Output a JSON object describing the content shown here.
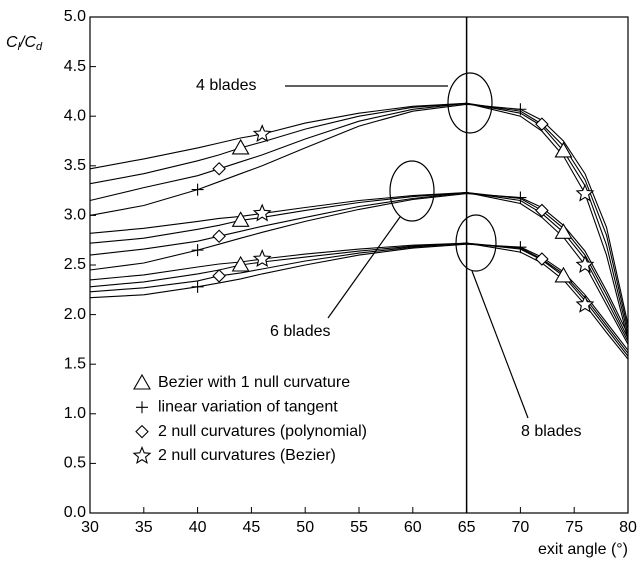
{
  "chart_data": {
    "type": "line",
    "ylabel": [
      "C",
      "l",
      "/C",
      "d"
    ],
    "xlabel": "exit angle (°)",
    "xlim": [
      30,
      80
    ],
    "ylim": [
      0,
      5
    ],
    "xticks": [
      30,
      35,
      40,
      45,
      50,
      55,
      60,
      65,
      70,
      75,
      80
    ],
    "yticks": [
      {
        "value": 0,
        "label": "0.0"
      },
      {
        "value": 0.5,
        "label": "0.5"
      },
      {
        "value": 1,
        "label": "1.0"
      },
      {
        "value": 1.5,
        "label": "1.5"
      },
      {
        "value": 2,
        "label": "2.0"
      },
      {
        "value": 2.5,
        "label": "2.5"
      },
      {
        "value": 3,
        "label": "3.0"
      },
      {
        "value": 3.5,
        "label": "3.5"
      },
      {
        "value": 4,
        "label": "4.0"
      },
      {
        "value": 4.5,
        "label": "4.5"
      },
      {
        "value": 5,
        "label": "5.0"
      }
    ],
    "vline": 65,
    "color": "#000000",
    "annotations": [
      "4 blades",
      "6 blades",
      "8 blades"
    ],
    "x": [
      30,
      35,
      40,
      42,
      44,
      46,
      50,
      55,
      60,
      65,
      70,
      72,
      74,
      76,
      78,
      80
    ],
    "series": [
      {
        "name": "Bezier with 1 null curvature",
        "marker": "triangle",
        "marker_x": [
          44,
          74
        ],
        "curves": [
          [
            3.32,
            3.42,
            3.55,
            3.61,
            3.68,
            3.74,
            3.87,
            4.0,
            4.09,
            4.13,
            4.03,
            3.9,
            3.65,
            3.3,
            2.7,
            1.8
          ],
          [
            2.72,
            2.77,
            2.86,
            2.9,
            2.95,
            2.98,
            3.05,
            3.13,
            3.19,
            3.23,
            3.15,
            3.02,
            2.83,
            2.56,
            2.15,
            1.73
          ],
          [
            2.28,
            2.33,
            2.41,
            2.45,
            2.5,
            2.53,
            2.58,
            2.64,
            2.69,
            2.72,
            2.66,
            2.55,
            2.39,
            2.14,
            1.86,
            1.58
          ]
        ]
      },
      {
        "name": "linear variation of tangent",
        "marker": "plus",
        "marker_x": [
          40,
          70
        ],
        "curves": [
          [
            3.0,
            3.1,
            3.26,
            3.34,
            3.42,
            3.5,
            3.68,
            3.9,
            4.05,
            4.12,
            4.07,
            3.96,
            3.75,
            3.42,
            2.88,
            1.9
          ],
          [
            2.45,
            2.52,
            2.65,
            2.71,
            2.77,
            2.83,
            2.94,
            3.06,
            3.16,
            3.22,
            3.18,
            3.08,
            2.9,
            2.64,
            2.24,
            1.8
          ],
          [
            2.17,
            2.2,
            2.28,
            2.32,
            2.36,
            2.41,
            2.5,
            2.6,
            2.67,
            2.71,
            2.68,
            2.58,
            2.43,
            2.2,
            1.92,
            1.64
          ]
        ]
      },
      {
        "name": "2 null curvatures (polynomial)",
        "marker": "diamond",
        "marker_x": [
          42,
          72
        ],
        "curves": [
          [
            3.15,
            3.28,
            3.4,
            3.47,
            3.54,
            3.61,
            3.77,
            3.95,
            4.07,
            4.13,
            4.05,
            3.92,
            3.7,
            3.36,
            2.8,
            1.85
          ],
          [
            2.6,
            2.66,
            2.74,
            2.79,
            2.84,
            2.89,
            2.98,
            3.09,
            3.17,
            3.23,
            3.17,
            3.05,
            2.87,
            2.6,
            2.2,
            1.76
          ],
          [
            2.23,
            2.27,
            2.34,
            2.39,
            2.42,
            2.46,
            2.54,
            2.62,
            2.68,
            2.72,
            2.67,
            2.56,
            2.41,
            2.17,
            1.89,
            1.61
          ]
        ]
      },
      {
        "name": "2 null curvatures (Bezier)",
        "marker": "star",
        "marker_x": [
          46,
          76
        ],
        "curves": [
          [
            3.47,
            3.57,
            3.68,
            3.73,
            3.78,
            3.82,
            3.93,
            4.03,
            4.1,
            4.13,
            4.0,
            3.85,
            3.6,
            3.22,
            2.6,
            1.75
          ],
          [
            2.82,
            2.87,
            2.94,
            2.97,
            2.99,
            3.02,
            3.08,
            3.15,
            3.2,
            3.23,
            3.12,
            2.98,
            2.78,
            2.5,
            2.1,
            1.7
          ],
          [
            2.35,
            2.4,
            2.48,
            2.51,
            2.53,
            2.56,
            2.61,
            2.66,
            2.7,
            2.72,
            2.63,
            2.52,
            2.35,
            2.1,
            1.82,
            1.55
          ]
        ]
      }
    ]
  }
}
